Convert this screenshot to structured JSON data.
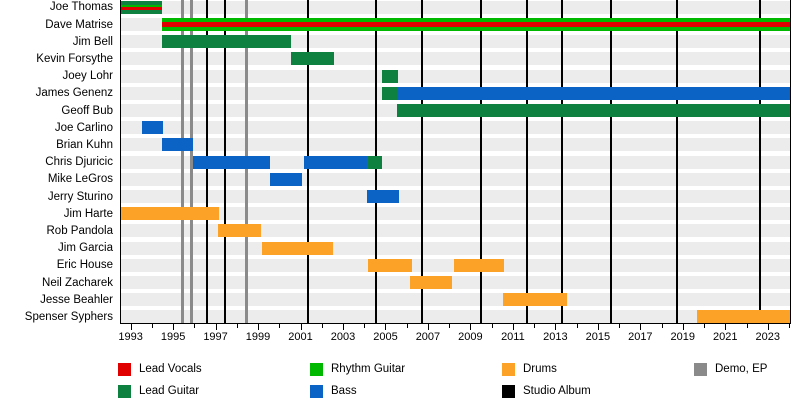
{
  "chart_data": {
    "type": "gantt-timeline",
    "description": "Band members timeline by role and year",
    "axis": {
      "start": 1992.5,
      "end": 2024,
      "tick_interval": 1,
      "label_interval": 2,
      "tick_labels": [
        "1993",
        "1995",
        "1997",
        "1999",
        "2001",
        "2003",
        "2005",
        "2007",
        "2009",
        "2011",
        "2013",
        "2015",
        "2017",
        "2019",
        "2021",
        "2023"
      ]
    },
    "colors": {
      "lead_vocals": "#e00000",
      "lead_guitar": "#0e8040",
      "rhythm_guitar": "#00b800",
      "bass": "#0b63c5",
      "drums": "#fba227",
      "studio_album": "#000000",
      "demo_ep": "#8a8a8a"
    },
    "rows": [
      {
        "name": "Joe Thomas",
        "bars": [
          {
            "start": 1992.5,
            "end": 1994.45,
            "stripes": [
              {
                "role": "lead_guitar",
                "w": 4
              },
              {
                "role": "rhythm_guitar",
                "w": 2
              },
              {
                "role": "lead_vocals",
                "w": 3
              },
              {
                "role": "lead_guitar",
                "w": 4
              }
            ]
          }
        ]
      },
      {
        "name": "Dave Matrise",
        "bars": [
          {
            "start": 1994.45,
            "end": 2024,
            "stripes": [
              {
                "role": "rhythm_guitar",
                "w": 4
              },
              {
                "role": "lead_vocals",
                "w": 4
              },
              {
                "role": "rhythm_guitar",
                "w": 4
              }
            ]
          }
        ]
      },
      {
        "name": "Jim Bell",
        "bars": [
          {
            "start": 1994.45,
            "end": 2000.5,
            "role": "lead_guitar"
          }
        ]
      },
      {
        "name": "Kevin Forsythe",
        "bars": [
          {
            "start": 2000.5,
            "end": 2002.55,
            "role": "lead_guitar"
          }
        ]
      },
      {
        "name": "Joey Lohr",
        "bars": [
          {
            "start": 2004.8,
            "end": 2005.55,
            "role": "lead_guitar"
          }
        ]
      },
      {
        "name": "James Genenz",
        "bars": [
          {
            "start": 2004.8,
            "end": 2005.55,
            "role": "lead_guitar"
          },
          {
            "start": 2005.55,
            "end": 2024,
            "role": "bass"
          }
        ]
      },
      {
        "name": "Geoff Bub",
        "bars": [
          {
            "start": 2005.5,
            "end": 2024,
            "role": "lead_guitar"
          }
        ]
      },
      {
        "name": "Joe Carlino",
        "bars": [
          {
            "start": 1993.5,
            "end": 1994.5,
            "role": "bass"
          }
        ]
      },
      {
        "name": "Brian Kuhn",
        "bars": [
          {
            "start": 1994.45,
            "end": 1995.9,
            "role": "bass"
          }
        ]
      },
      {
        "name": "Chris Djuricic",
        "bars": [
          {
            "start": 1995.9,
            "end": 1999.5,
            "role": "bass"
          },
          {
            "start": 2001.1,
            "end": 2004.1,
            "role": "bass"
          },
          {
            "start": 2004.1,
            "end": 2004.8,
            "role": "lead_guitar"
          }
        ]
      },
      {
        "name": "Mike LeGros",
        "bars": [
          {
            "start": 1999.5,
            "end": 2001.0,
            "role": "bass"
          }
        ]
      },
      {
        "name": "Jerry Sturino",
        "bars": [
          {
            "start": 2004.1,
            "end": 2005.6,
            "role": "bass"
          }
        ]
      },
      {
        "name": "Jim Harte",
        "bars": [
          {
            "start": 1992.5,
            "end": 1997.1,
            "role": "drums"
          }
        ]
      },
      {
        "name": "Rob Pandola",
        "bars": [
          {
            "start": 1997.05,
            "end": 1999.1,
            "role": "drums"
          }
        ]
      },
      {
        "name": "Jim Garcia",
        "bars": [
          {
            "start": 1999.15,
            "end": 2002.5,
            "role": "drums"
          }
        ]
      },
      {
        "name": "Eric House",
        "bars": [
          {
            "start": 2004.15,
            "end": 2006.2,
            "role": "drums"
          },
          {
            "start": 2008.2,
            "end": 2010.55,
            "role": "drums"
          }
        ]
      },
      {
        "name": "Neil Zacharek",
        "bars": [
          {
            "start": 2006.1,
            "end": 2008.1,
            "role": "drums"
          }
        ]
      },
      {
        "name": "Jesse Beahler",
        "bars": [
          {
            "start": 2010.5,
            "end": 2013.5,
            "role": "drums"
          }
        ]
      },
      {
        "name": "Spenser Syphers",
        "bars": [
          {
            "start": 2019.6,
            "end": 2024,
            "role": "drums"
          }
        ]
      }
    ],
    "releases": {
      "studio_albums": [
        1996.55,
        1997.4,
        2001.3,
        2004.5,
        2006.65,
        2009.45,
        2011.6,
        2013.25,
        2015.55,
        2018.7,
        2022.6
      ],
      "demos_eps": [
        1995.4,
        1995.8,
        1998.4
      ]
    },
    "legend": [
      {
        "label": "Lead Vocals",
        "role": "lead_vocals",
        "col": 0,
        "row": 0
      },
      {
        "label": "Lead Guitar",
        "role": "lead_guitar",
        "col": 0,
        "row": 1
      },
      {
        "label": "Rhythm Guitar",
        "role": "rhythm_guitar",
        "col": 1,
        "row": 0
      },
      {
        "label": "Bass",
        "role": "bass",
        "col": 1,
        "row": 1
      },
      {
        "label": "Drums",
        "role": "drums",
        "col": 2,
        "row": 0
      },
      {
        "label": "Studio Album",
        "role": "studio_album",
        "col": 2,
        "row": 1
      },
      {
        "label": "Demo, EP",
        "role": "demo_ep",
        "col": 3,
        "row": 0
      }
    ]
  }
}
